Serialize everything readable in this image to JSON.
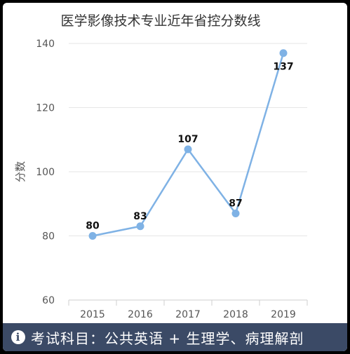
{
  "chart_data": {
    "type": "line",
    "title": "医学影像技术专业近年省控分数线",
    "ylabel": "分数",
    "xlabel": "",
    "categories": [
      "2015",
      "2016",
      "2017",
      "2018",
      "2019"
    ],
    "series": [
      {
        "values": [
          80,
          83,
          107,
          87,
          137
        ],
        "color": "#7fb2e5"
      }
    ],
    "ylim": [
      60,
      140
    ],
    "yticks": [
      60,
      80,
      100,
      120,
      140
    ],
    "grid": true,
    "data_labels": [
      "80",
      "83",
      "107",
      "87",
      "137"
    ]
  },
  "footer": {
    "icon": "info-icon",
    "text": "考试科目：公共英语 + 生理学、病理解剖"
  }
}
